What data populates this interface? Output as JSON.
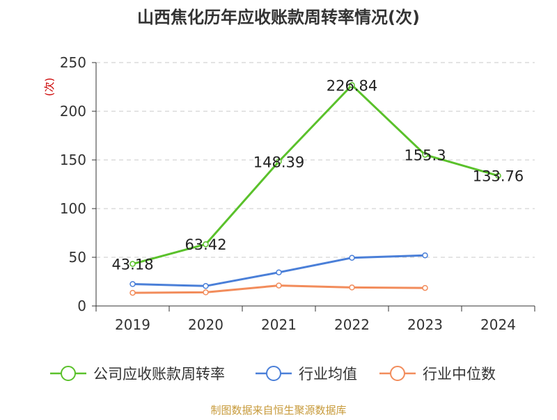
{
  "chart_data": {
    "type": "line",
    "title": "山西焦化历年应收账款周转率情况(次)",
    "ylabel": "(次)",
    "xlabel": "",
    "categories": [
      "2019",
      "2020",
      "2021",
      "2022",
      "2023",
      "2024"
    ],
    "ylim": [
      0,
      250
    ],
    "yticks": [
      0,
      50,
      100,
      150,
      200,
      250
    ],
    "grid": true,
    "legend_position": "bottom",
    "series": [
      {
        "name": "公司应收账款周转率",
        "color": "#5ac12b",
        "values": [
          43.18,
          63.42,
          148.39,
          226.84,
          155.3,
          133.76
        ],
        "labels": [
          "43.18",
          "63.42",
          "148.39",
          "226.84",
          "155.3",
          "133.76"
        ]
      },
      {
        "name": "行业均值",
        "color": "#4a7fd8",
        "values": [
          22.5,
          20.5,
          34.5,
          49.5,
          52.0,
          null
        ]
      },
      {
        "name": "行业中位数",
        "color": "#f28c5b",
        "values": [
          13.5,
          14.0,
          21.0,
          19.0,
          18.5,
          null
        ]
      }
    ]
  },
  "footer": {
    "source": "制图数据来自恒生聚源数据库",
    "source_color": "#c79a3a"
  }
}
